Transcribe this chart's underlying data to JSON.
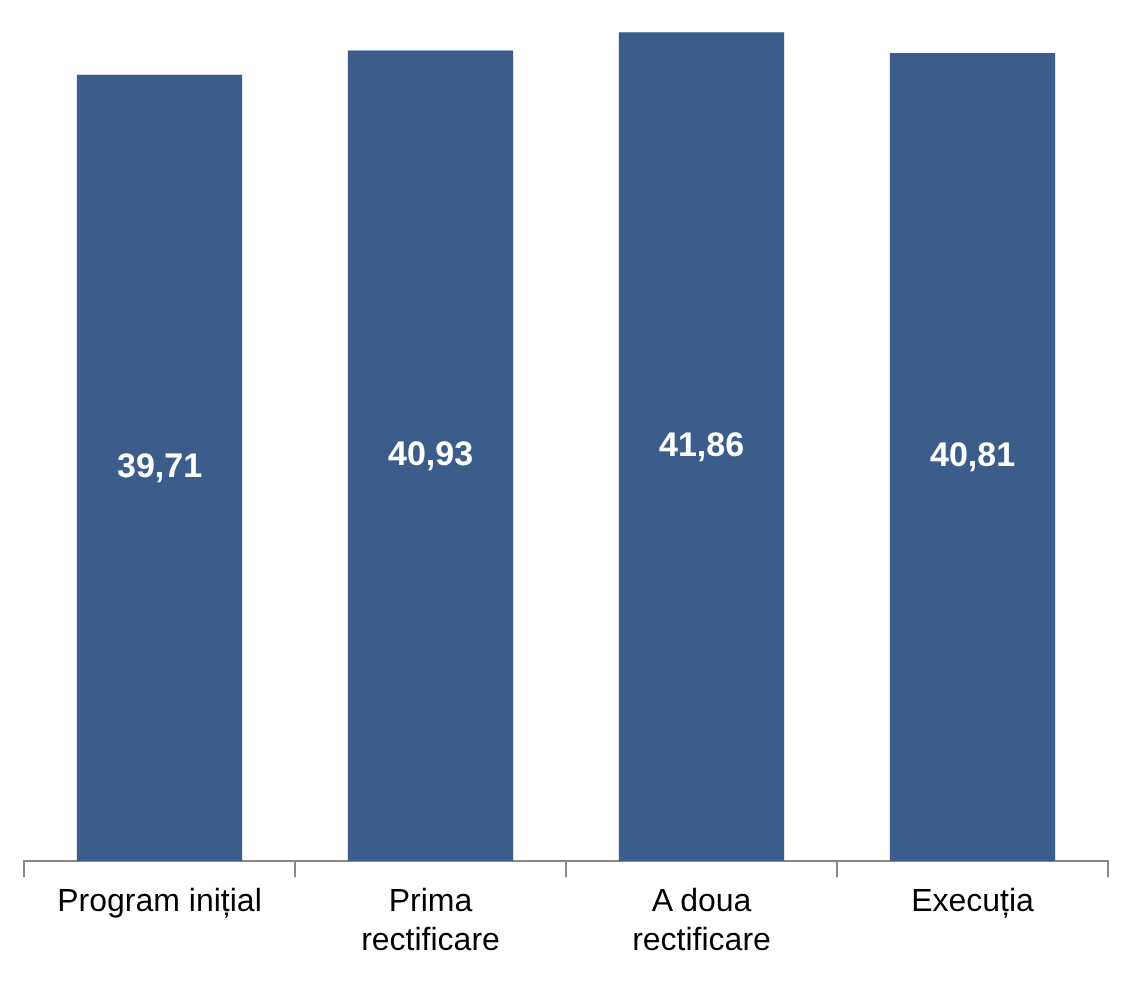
{
  "chart_data": {
    "type": "bar",
    "categories": [
      "Program inițial",
      "Prima rectificare",
      "A doua rectificare",
      "Execuția"
    ],
    "values": [
      39.71,
      40.93,
      41.86,
      40.81
    ],
    "value_labels": [
      "39,71",
      "40,93",
      "41,86",
      "40,81"
    ],
    "color": "#3b5d8b"
  }
}
